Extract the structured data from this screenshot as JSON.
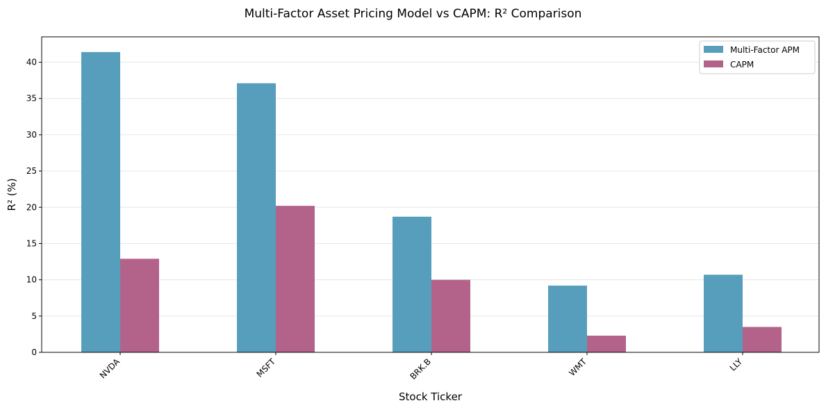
{
  "chart_data": {
    "type": "bar",
    "title": "Multi-Factor Asset Pricing Model vs CAPM: R² Comparison",
    "xlabel": "Stock Ticker",
    "ylabel": "R² (%)",
    "categories": [
      "NVDA",
      "MSFT",
      "BRK.B",
      "WMT",
      "LLY"
    ],
    "series": [
      {
        "name": "Multi-Factor APM",
        "color": "#579EBC",
        "values": [
          41.4,
          37.1,
          18.7,
          9.2,
          10.7
        ]
      },
      {
        "name": "CAPM",
        "color": "#B3638A",
        "values": [
          12.9,
          20.2,
          10.0,
          2.3,
          3.5
        ]
      }
    ],
    "ylim": [
      0,
      43.5
    ],
    "yticks": [
      0,
      5,
      10,
      15,
      20,
      25,
      30,
      35,
      40
    ],
    "grid": "y",
    "legend": "top-right"
  }
}
